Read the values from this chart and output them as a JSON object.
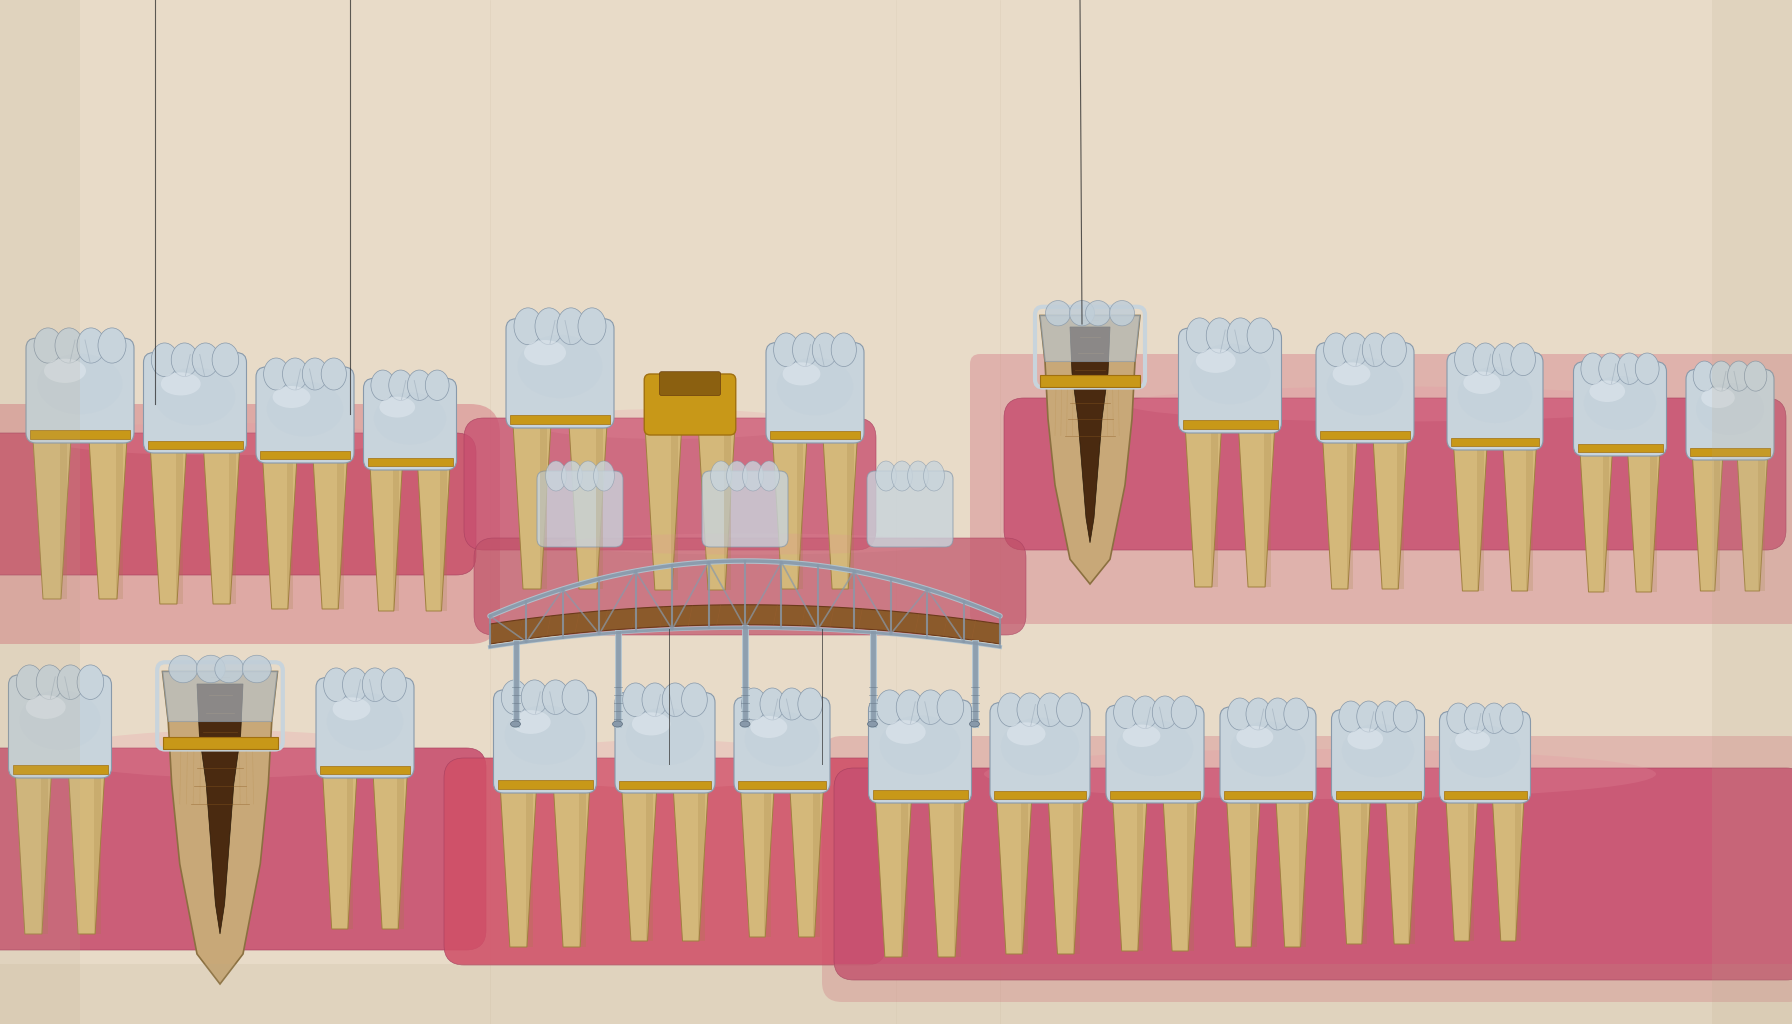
{
  "bg": "#E8DBC8",
  "crown_base": "#C8D4DC",
  "crown_mid": "#B8C8D4",
  "crown_hi": "#E8EFF4",
  "crown_blue": "#A8C0CC",
  "root_base": "#D4B87A",
  "root_mid": "#C0A060",
  "root_dark": "#A08040",
  "gum_main": "#D4607A",
  "gum_hi": "#E88090",
  "gum_shadow": "#B84060",
  "gold_ring": "#C8980A",
  "bridge_metal": "#8899AA",
  "bridge_light": "#B0C4D0",
  "bridge_dark": "#607080",
  "bridge_wood": "#8B5A2B",
  "bridge_wood2": "#A06832",
  "pulp_dark": "#3A2010",
  "pulp_mid": "#6B4020",
  "dentin_line": "#C8A050",
  "wire_color": "#303030",
  "implant_color": "#9AAABB"
}
